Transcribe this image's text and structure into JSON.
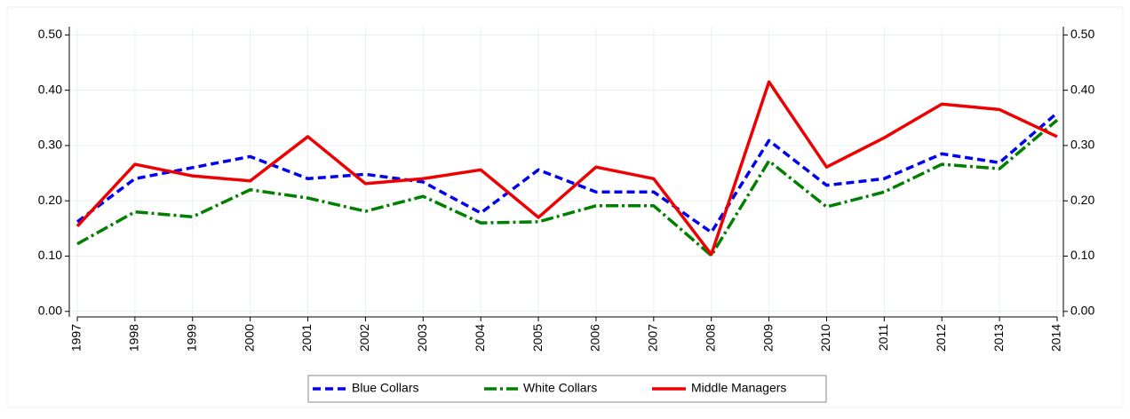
{
  "chart_data": {
    "type": "line",
    "x": [
      1997,
      1998,
      1999,
      2000,
      2001,
      2002,
      2003,
      2004,
      2005,
      2006,
      2007,
      2008,
      2009,
      2010,
      2011,
      2012,
      2013,
      2014
    ],
    "xlim": [
      1997,
      2014
    ],
    "xticks": [
      1997,
      1998,
      1999,
      2000,
      2001,
      2002,
      2003,
      2004,
      2005,
      2006,
      2007,
      2008,
      2009,
      2010,
      2011,
      2012,
      2013,
      2014
    ],
    "ylim": [
      -0.01,
      0.515
    ],
    "yticks": [
      {
        "value": 0,
        "label": "0.00"
      },
      {
        "value": 0.1,
        "label": "0.10"
      },
      {
        "value": 0.2,
        "label": "0.20"
      },
      {
        "value": 0.3,
        "label": "0.30"
      },
      {
        "value": 0.4,
        "label": "0.40"
      },
      {
        "value": 0.5,
        "label": "0.50"
      }
    ],
    "y2lim": [
      -0.01,
      0.515
    ],
    "y2ticks": [
      {
        "value": 0,
        "label": "0.00"
      },
      {
        "value": 0.1,
        "label": "0.10"
      },
      {
        "value": 0.2,
        "label": "0.20"
      },
      {
        "value": 0.3,
        "label": "0.30"
      },
      {
        "value": 0.4,
        "label": "0.40"
      },
      {
        "value": 0.5,
        "label": "0.50"
      }
    ],
    "grid": true,
    "legend": "bottom",
    "series": [
      {
        "name": "Blue Collars",
        "color": "#0000ee",
        "dash": "dashed",
        "values": [
          0.162,
          0.24,
          0.26,
          0.28,
          0.24,
          0.248,
          0.234,
          0.178,
          0.256,
          0.216,
          0.216,
          0.143,
          0.309,
          0.228,
          0.24,
          0.285,
          0.269,
          0.359
        ]
      },
      {
        "name": "White Collars",
        "color": "#007f00",
        "dash": "dashdot",
        "values": [
          0.122,
          0.18,
          0.171,
          0.22,
          0.205,
          0.181,
          0.208,
          0.16,
          0.162,
          0.191,
          0.191,
          0.101,
          0.272,
          0.189,
          0.216,
          0.266,
          0.258,
          0.346
        ]
      },
      {
        "name": "Middle Managers",
        "color": "#ee0000",
        "dash": "solid",
        "values": [
          0.154,
          0.266,
          0.245,
          0.236,
          0.316,
          0.231,
          0.24,
          0.256,
          0.17,
          0.261,
          0.24,
          0.103,
          0.415,
          0.261,
          0.314,
          0.375,
          0.365,
          0.316
        ]
      }
    ]
  }
}
